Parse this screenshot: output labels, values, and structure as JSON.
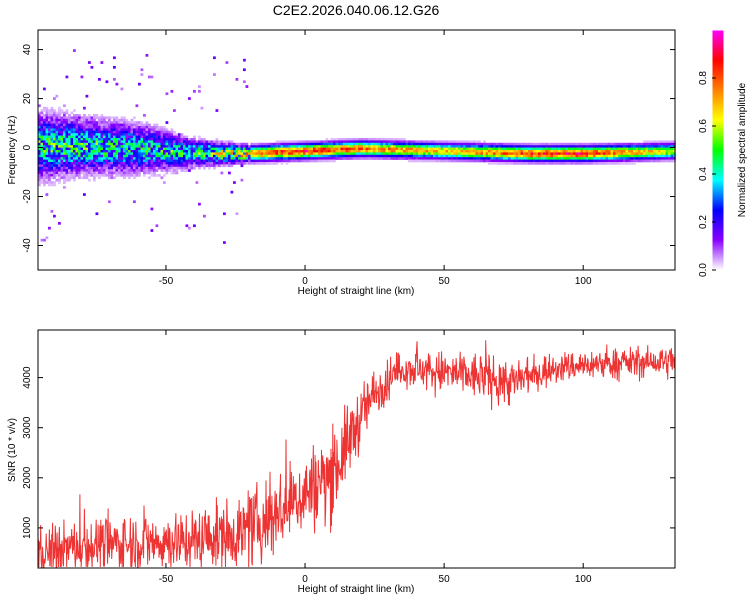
{
  "figure_title": "C2E2.2026.040.06.12.G26",
  "chart_data": [
    {
      "type": "heatmap",
      "title": "C2E2.2026.040.06.12.G26",
      "xlabel": "Height of straight line (km)",
      "ylabel": "Frequency (Hz)",
      "xlim": [
        -96,
        133
      ],
      "ylim": [
        -50,
        48
      ],
      "xticks": [
        -50,
        0,
        50,
        100
      ],
      "xtick_labels": [
        "-50",
        "0",
        "50",
        "100"
      ],
      "yticks": [
        -40,
        -20,
        0,
        20,
        40
      ],
      "ytick_labels": [
        "-40",
        "-20",
        "0",
        "20",
        "40"
      ],
      "colorbar": {
        "label": "Normalized spectral amplitude",
        "range": [
          0,
          1
        ],
        "ticks": [
          0.0,
          0.2,
          0.4,
          0.6,
          0.8
        ],
        "tick_labels": [
          "0.0",
          "0.2",
          "0.4",
          "0.6",
          "0.8"
        ],
        "colormap": [
          "#ffffff",
          "#8800ff",
          "#0000ff",
          "#00ffff",
          "#00ff00",
          "#ffff00",
          "#ff8000",
          "#ff0000",
          "#ff00ff"
        ]
      },
      "description_points": {
        "height_km": [
          -96,
          -80,
          -60,
          -40,
          -20,
          0,
          20,
          50,
          80,
          100,
          133
        ],
        "center_freq_hz": [
          1,
          1,
          0,
          -2,
          -2,
          -1,
          0,
          -1,
          -2,
          -2,
          -1
        ],
        "spread_hz": [
          12,
          10,
          9,
          5,
          3,
          3,
          3,
          3,
          3,
          3,
          3
        ],
        "peak_amplitude": [
          0.5,
          0.5,
          0.45,
          0.5,
          0.8,
          0.9,
          0.8,
          0.7,
          0.85,
          0.9,
          0.6
        ]
      }
    },
    {
      "type": "line",
      "xlabel": "Height of straight line (km)",
      "ylabel": "SNR (10 * v/v)",
      "xlim": [
        -96,
        133
      ],
      "ylim": [
        200,
        4950
      ],
      "xticks": [
        -50,
        0,
        50,
        100
      ],
      "xtick_labels": [
        "-50",
        "0",
        "50",
        "100"
      ],
      "yticks": [
        1000,
        2000,
        3000,
        4000
      ],
      "ytick_labels": [
        "1000",
        "2000",
        "3000",
        "4000"
      ],
      "series_color": "#ee3333",
      "series": [
        {
          "name": "SNR",
          "x": [
            -96,
            -80,
            -60,
            -40,
            -20,
            -10,
            0,
            8,
            12,
            18,
            25,
            35,
            50,
            65,
            75,
            90,
            100,
            115,
            133
          ],
          "y": [
            500,
            650,
            700,
            750,
            950,
            1300,
            1700,
            2000,
            2300,
            3000,
            3700,
            4200,
            4100,
            4000,
            3900,
            4200,
            4250,
            4300,
            4300
          ]
        }
      ],
      "noise_amplitude": [
        400,
        450,
        500,
        500,
        600,
        700,
        650,
        800,
        700,
        550,
        400,
        300,
        350,
        400,
        400,
        250,
        250,
        250,
        250
      ]
    }
  ]
}
